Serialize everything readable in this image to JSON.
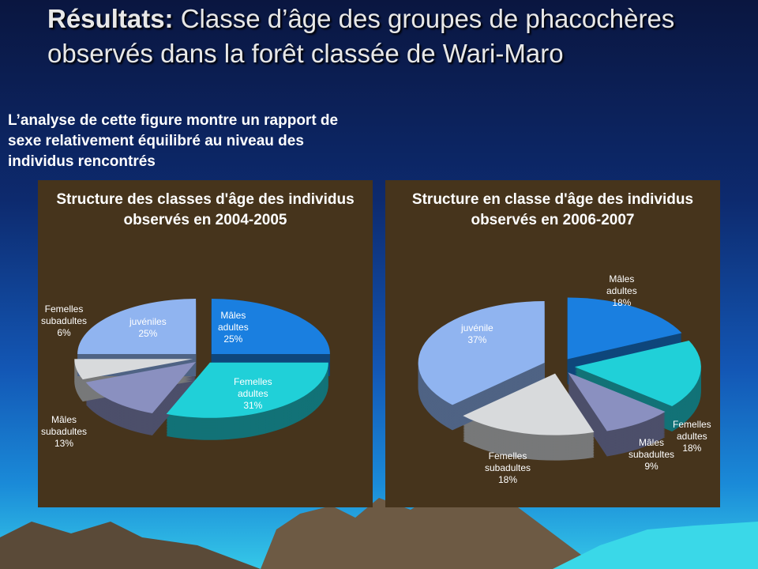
{
  "slide": {
    "title_bold": "Résultats:",
    "title_rest": " Classe d’âge des groupes de phacochères observés dans la  forêt classée de Wari-Maro",
    "note": "L’analyse de cette figure montre  un rapport de sexe relativement équilibré au niveau des individus  rencontrés"
  },
  "chart_data": [
    {
      "type": "pie",
      "title": "Structure des classes d'âge des individus observés en 2004-2005",
      "categories": [
        "Mâles adultes",
        "Femelles adultes",
        "Mâles subadultes",
        "Femelles subadultes",
        "juvéniles"
      ],
      "values": [
        25,
        31,
        13,
        6,
        25
      ],
      "labels": [
        {
          "name": "Mâles",
          "name2": "adultes",
          "pct": "25%"
        },
        {
          "name": "Femelles",
          "name2": "adultes",
          "pct": "31%"
        },
        {
          "name": "Mâles",
          "name2": "subadultes",
          "pct": "13%"
        },
        {
          "name": "Femelles",
          "name2": "subadultes",
          "pct": "6%"
        },
        {
          "name": "juvéniles",
          "name2": "",
          "pct": "25%"
        }
      ],
      "colors": [
        "#1a7fe0",
        "#20d0d8",
        "#8a90c0",
        "#d8dadc",
        "#90b4f0"
      ]
    },
    {
      "type": "pie",
      "title": "Structure en classe d'âge des individus observés en 2006-2007",
      "categories": [
        "Mâles adultes",
        "Femelles adultes",
        "Mâles subadultes",
        "Femelles subadultes",
        "juvénile"
      ],
      "values": [
        18,
        18,
        9,
        18,
        37
      ],
      "labels": [
        {
          "name": "Mâles",
          "name2": "adultes",
          "pct": "18%"
        },
        {
          "name": "Femelles",
          "name2": "adultes",
          "pct": "18%"
        },
        {
          "name": "Mâles",
          "name2": "subadultes",
          "pct": "9%"
        },
        {
          "name": "Femelles",
          "name2": "subadultes",
          "pct": "18%"
        },
        {
          "name": "juvénile",
          "name2": "",
          "pct": "37%"
        }
      ],
      "colors": [
        "#1a7fe0",
        "#20d0d8",
        "#8a90c0",
        "#d8dadc",
        "#90b4f0"
      ]
    }
  ]
}
